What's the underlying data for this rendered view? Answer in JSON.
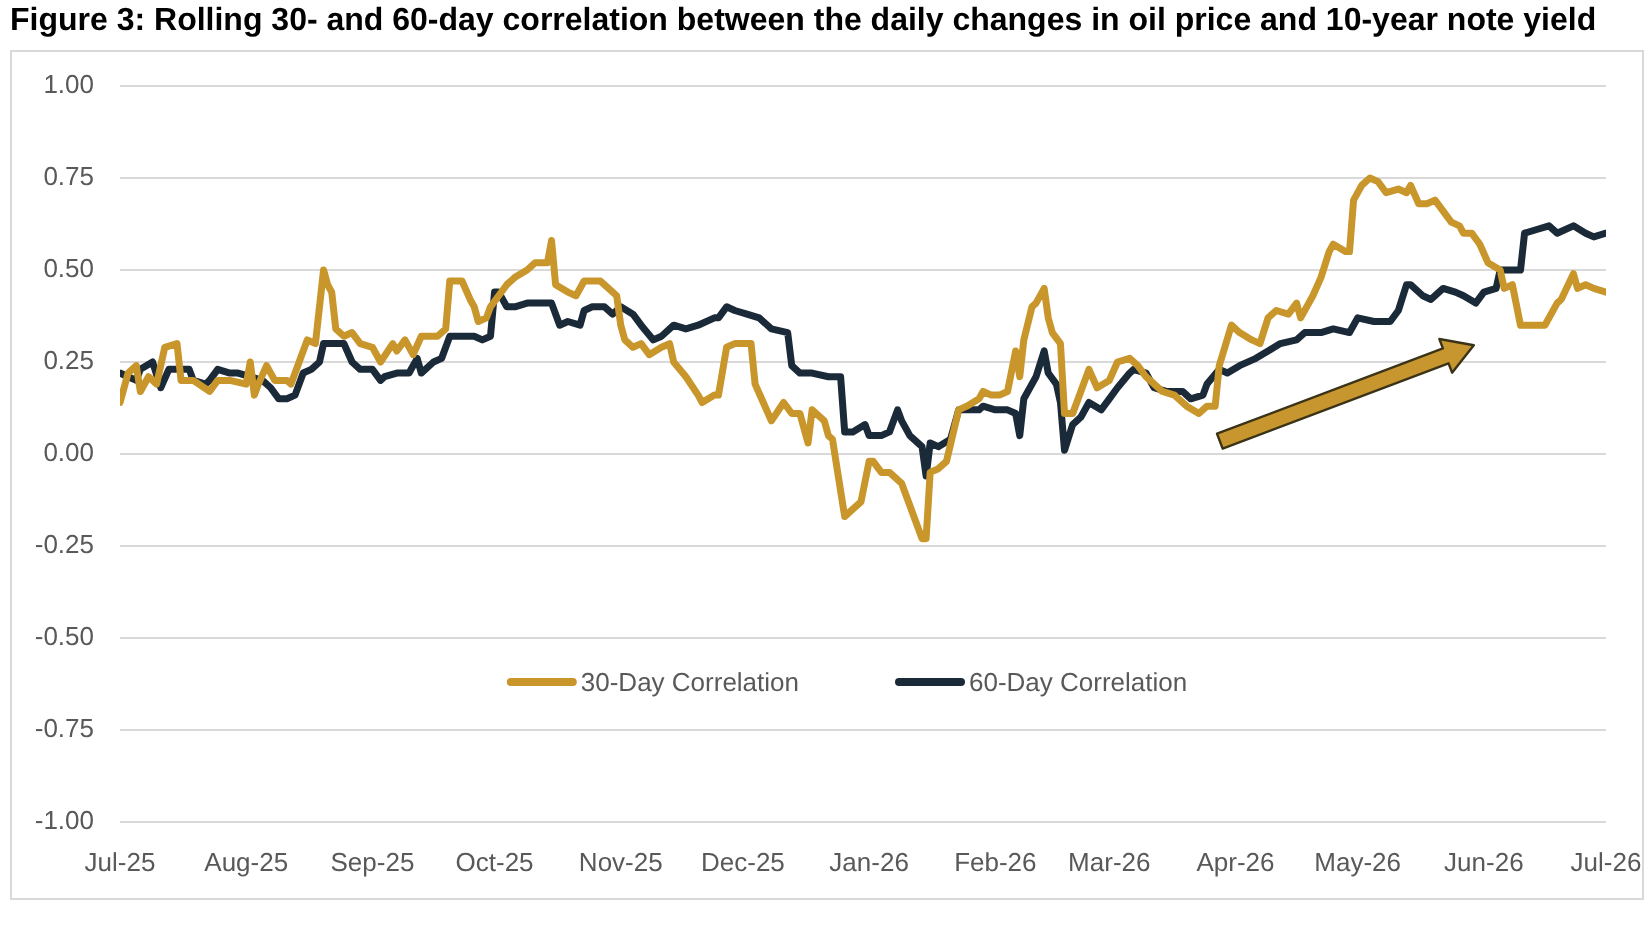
{
  "chart_data": {
    "type": "line",
    "title": "Figure 3: Rolling 30- and 60-day correlation between the daily changes in oil price and 10-year note yield",
    "xlim": [
      "2025-07-01",
      "2026-07-01"
    ],
    "xticks": [
      {
        "value": "2025-07-01",
        "label": "Jul-25"
      },
      {
        "value": "2025-08-01",
        "label": "Aug-25"
      },
      {
        "value": "2025-09-01",
        "label": "Sep-25"
      },
      {
        "value": "2025-10-01",
        "label": "Oct-25"
      },
      {
        "value": "2025-11-01",
        "label": "Nov-25"
      },
      {
        "value": "2025-12-01",
        "label": "Dec-25"
      },
      {
        "value": "2026-01-01",
        "label": "Jan-26"
      },
      {
        "value": "2026-02-01",
        "label": "Feb-26"
      },
      {
        "value": "2026-03-01",
        "label": "Mar-26"
      },
      {
        "value": "2026-04-01",
        "label": "Apr-26"
      },
      {
        "value": "2026-05-01",
        "label": "May-26"
      },
      {
        "value": "2026-06-01",
        "label": "Jun-26"
      },
      {
        "value": "2026-07-01",
        "label": "Jul-26"
      }
    ],
    "ylim": [
      -1,
      1
    ],
    "yticks": [
      {
        "value": -1,
        "label": "-1.00"
      },
      -0.75,
      {
        "value": -0.5,
        "label": "-0.50"
      },
      -0.25,
      {
        "value": 0,
        "label": "0.00"
      },
      0.25,
      {
        "value": 0.5,
        "label": "0.50"
      },
      0.75,
      {
        "value": 1,
        "label": "1.00"
      }
    ],
    "grid": "y",
    "legend": "bottom",
    "series": [
      {
        "name": "30-Day Correlation",
        "color": "#c9962b",
        "x": [
          "2025-07-01",
          "2025-07-03",
          "2025-07-05",
          "2025-07-06",
          "2025-07-08",
          "2025-07-10",
          "2025-07-12",
          "2025-07-15",
          "2025-07-16",
          "2025-07-19",
          "2025-07-23",
          "2025-07-25",
          "2025-07-28",
          "2025-08-01",
          "2025-08-02",
          "2025-08-03",
          "2025-08-04",
          "2025-08-06",
          "2025-08-08",
          "2025-08-11",
          "2025-08-12",
          "2025-08-14",
          "2025-08-16",
          "2025-08-18",
          "2025-08-20",
          "2025-08-21",
          "2025-08-22",
          "2025-08-23",
          "2025-08-25",
          "2025-08-27",
          "2025-08-29",
          "2025-09-01",
          "2025-09-03",
          "2025-09-06",
          "2025-09-07",
          "2025-09-09",
          "2025-09-11",
          "2025-09-13",
          "2025-09-17",
          "2025-09-19",
          "2025-09-20",
          "2025-09-23",
          "2025-09-25",
          "2025-09-26",
          "2025-09-27",
          "2025-09-29",
          "2025-09-30",
          "2025-10-04",
          "2025-10-06",
          "2025-10-09",
          "2025-10-11",
          "2025-10-14",
          "2025-10-15",
          "2025-10-16",
          "2025-10-19",
          "2025-10-21",
          "2025-10-23",
          "2025-10-27",
          "2025-10-29",
          "2025-10-31",
          "2025-11-01",
          "2025-11-02",
          "2025-11-04",
          "2025-11-06",
          "2025-11-08",
          "2025-11-11",
          "2025-11-13",
          "2025-11-14",
          "2025-11-17",
          "2025-11-20",
          "2025-11-21",
          "2025-11-24",
          "2025-11-25",
          "2025-11-27",
          "2025-11-29",
          "2025-12-03",
          "2025-12-04",
          "2025-12-06",
          "2025-12-08",
          "2025-12-11",
          "2025-12-13",
          "2025-12-15",
          "2025-12-17",
          "2025-12-18",
          "2025-12-21",
          "2025-12-22",
          "2025-12-23",
          "2025-12-26",
          "2025-12-28",
          "2025-12-30",
          "2026-01-01",
          "2026-01-02",
          "2026-01-04",
          "2026-01-06",
          "2026-01-09",
          "2026-01-11",
          "2026-01-14",
          "2026-01-15",
          "2026-01-16",
          "2026-01-18",
          "2026-01-20",
          "2026-01-23",
          "2026-01-25",
          "2026-01-28",
          "2026-01-29",
          "2026-01-31",
          "2026-02-02",
          "2026-02-04",
          "2026-02-06",
          "2026-02-07",
          "2026-02-08",
          "2026-02-10",
          "2026-02-11",
          "2026-02-13",
          "2026-02-14",
          "2026-02-15",
          "2026-02-17",
          "2026-02-18",
          "2026-02-20",
          "2026-02-22",
          "2026-02-24",
          "2026-02-26",
          "2026-03-01",
          "2026-03-03",
          "2026-03-06",
          "2026-03-08",
          "2026-03-10",
          "2026-03-14",
          "2026-03-17",
          "2026-03-20",
          "2026-03-23",
          "2026-03-25",
          "2026-03-27",
          "2026-03-28",
          "2026-03-31",
          "2026-04-02",
          "2026-04-05",
          "2026-04-07",
          "2026-04-09",
          "2026-04-11",
          "2026-04-14",
          "2026-04-16",
          "2026-04-17",
          "2026-04-20",
          "2026-04-22",
          "2026-04-24",
          "2026-04-25",
          "2026-04-28",
          "2026-04-29",
          "2026-04-30",
          "2026-05-02",
          "2026-05-04",
          "2026-05-06",
          "2026-05-08",
          "2026-05-11",
          "2026-05-13",
          "2026-05-14",
          "2026-05-16",
          "2026-05-18",
          "2026-05-20",
          "2026-05-22",
          "2026-05-24",
          "2026-05-26",
          "2026-05-27",
          "2026-05-29",
          "2026-05-31",
          "2026-06-02",
          "2026-06-05",
          "2026-06-06",
          "2026-06-08",
          "2026-06-10",
          "2026-06-14",
          "2026-06-16",
          "2026-06-19",
          "2026-06-20",
          "2026-06-23",
          "2026-06-24",
          "2026-06-26",
          "2026-06-28",
          "2026-07-01"
        ],
        "values": [
          0.14,
          0.22,
          0.24,
          0.17,
          0.21,
          0.19,
          0.29,
          0.3,
          0.2,
          0.2,
          0.17,
          0.2,
          0.2,
          0.19,
          0.25,
          0.16,
          0.19,
          0.24,
          0.2,
          0.2,
          0.19,
          0.25,
          0.31,
          0.3,
          0.5,
          0.46,
          0.44,
          0.34,
          0.32,
          0.33,
          0.3,
          0.29,
          0.25,
          0.3,
          0.28,
          0.31,
          0.27,
          0.32,
          0.32,
          0.34,
          0.47,
          0.47,
          0.42,
          0.4,
          0.36,
          0.37,
          0.4,
          0.46,
          0.48,
          0.5,
          0.52,
          0.52,
          0.58,
          0.46,
          0.44,
          0.43,
          0.47,
          0.47,
          0.45,
          0.43,
          0.35,
          0.31,
          0.29,
          0.3,
          0.27,
          0.29,
          0.3,
          0.25,
          0.21,
          0.16,
          0.14,
          0.16,
          0.16,
          0.29,
          0.3,
          0.3,
          0.19,
          0.14,
          0.09,
          0.14,
          0.11,
          0.11,
          0.03,
          0.12,
          0.09,
          0.05,
          0.04,
          -0.17,
          -0.15,
          -0.13,
          -0.02,
          -0.02,
          -0.05,
          -0.05,
          -0.08,
          -0.14,
          -0.23,
          -0.23,
          -0.05,
          -0.04,
          -0.02,
          0.12,
          0.13,
          0.15,
          0.17,
          0.16,
          0.16,
          0.17,
          0.28,
          0.21,
          0.31,
          0.4,
          0.41,
          0.45,
          0.37,
          0.33,
          0.3,
          0.11,
          0.11,
          0.17,
          0.23,
          0.18,
          0.2,
          0.25,
          0.26,
          0.24,
          0.21,
          0.17,
          0.16,
          0.13,
          0.11,
          0.13,
          0.13,
          0.24,
          0.35,
          0.33,
          0.31,
          0.3,
          0.37,
          0.39,
          0.38,
          0.41,
          0.37,
          0.43,
          0.48,
          0.55,
          0.57,
          0.55,
          0.55,
          0.69,
          0.73,
          0.75,
          0.74,
          0.71,
          0.72,
          0.71,
          0.73,
          0.68,
          0.68,
          0.69,
          0.66,
          0.63,
          0.62,
          0.6,
          0.6,
          0.57,
          0.52,
          0.5,
          0.45,
          0.46,
          0.35,
          0.35,
          0.35,
          0.41,
          0.42,
          0.49,
          0.45,
          0.46,
          0.45,
          0.44
        ]
      },
      {
        "name": "60-Day Correlation",
        "color": "#1b2a38",
        "x": [
          "2025-07-01",
          "2025-07-03",
          "2025-07-05",
          "2025-07-06",
          "2025-07-09",
          "2025-07-11",
          "2025-07-13",
          "2025-07-15",
          "2025-07-18",
          "2025-07-19",
          "2025-07-22",
          "2025-07-23",
          "2025-07-25",
          "2025-07-28",
          "2025-07-30",
          "2025-08-02",
          "2025-08-05",
          "2025-08-07",
          "2025-08-09",
          "2025-08-11",
          "2025-08-13",
          "2025-08-15",
          "2025-08-17",
          "2025-08-19",
          "2025-08-20",
          "2025-08-23",
          "2025-08-25",
          "2025-08-27",
          "2025-08-29",
          "2025-09-01",
          "2025-09-03",
          "2025-09-04",
          "2025-09-07",
          "2025-09-10",
          "2025-09-12",
          "2025-09-13",
          "2025-09-16",
          "2025-09-18",
          "2025-09-20",
          "2025-09-22",
          "2025-09-26",
          "2025-09-28",
          "2025-09-30",
          "2025-10-01",
          "2025-10-02",
          "2025-10-04",
          "2025-10-06",
          "2025-10-09",
          "2025-10-12",
          "2025-10-15",
          "2025-10-17",
          "2025-10-19",
          "2025-10-22",
          "2025-10-23",
          "2025-10-25",
          "2025-10-28",
          "2025-10-30",
          "2025-11-01",
          "2025-11-04",
          "2025-11-06",
          "2025-11-09",
          "2025-11-11",
          "2025-11-14",
          "2025-11-17",
          "2025-11-20",
          "2025-11-24",
          "2025-11-25",
          "2025-11-27",
          "2025-11-29",
          "2025-12-02",
          "2025-12-05",
          "2025-12-08",
          "2025-12-12",
          "2025-12-13",
          "2025-12-15",
          "2025-12-18",
          "2025-12-22",
          "2025-12-25",
          "2025-12-26",
          "2025-12-28",
          "2025-12-31",
          "2026-01-01",
          "2026-01-04",
          "2026-01-06",
          "2026-01-08",
          "2026-01-09",
          "2026-01-11",
          "2026-01-14",
          "2026-01-15",
          "2026-01-16",
          "2026-01-18",
          "2026-01-21",
          "2026-01-23",
          "2026-01-25",
          "2026-01-28",
          "2026-01-29",
          "2026-02-01",
          "2026-02-04",
          "2026-02-06",
          "2026-02-07",
          "2026-02-08",
          "2026-02-11",
          "2026-02-13",
          "2026-02-14",
          "2026-02-16",
          "2026-02-17",
          "2026-02-18",
          "2026-02-20",
          "2026-02-22",
          "2026-02-24",
          "2026-02-27",
          "2026-03-01",
          "2026-03-03",
          "2026-03-06",
          "2026-03-07",
          "2026-03-10",
          "2026-03-12",
          "2026-03-15",
          "2026-03-19",
          "2026-03-21",
          "2026-03-24",
          "2026-03-25",
          "2026-03-28",
          "2026-03-30",
          "2026-04-02",
          "2026-04-06",
          "2026-04-09",
          "2026-04-12",
          "2026-04-16",
          "2026-04-18",
          "2026-04-22",
          "2026-04-25",
          "2026-04-29",
          "2026-05-01",
          "2026-05-05",
          "2026-05-09",
          "2026-05-11",
          "2026-05-13",
          "2026-05-14",
          "2026-05-17",
          "2026-05-19",
          "2026-05-22",
          "2026-05-25",
          "2026-05-27",
          "2026-05-30",
          "2026-06-01",
          "2026-06-04",
          "2026-06-05",
          "2026-06-07",
          "2026-06-10",
          "2026-06-11",
          "2026-06-14",
          "2026-06-17",
          "2026-06-19",
          "2026-06-23",
          "2026-06-26",
          "2026-06-28",
          "2026-07-01"
        ],
        "values": [
          0.22,
          0.21,
          0.2,
          0.23,
          0.25,
          0.18,
          0.23,
          0.23,
          0.23,
          0.2,
          0.19,
          0.2,
          0.23,
          0.22,
          0.22,
          0.21,
          0.2,
          0.18,
          0.15,
          0.15,
          0.16,
          0.22,
          0.23,
          0.25,
          0.3,
          0.3,
          0.3,
          0.25,
          0.23,
          0.23,
          0.2,
          0.21,
          0.22,
          0.22,
          0.26,
          0.22,
          0.25,
          0.26,
          0.32,
          0.32,
          0.32,
          0.31,
          0.32,
          0.44,
          0.44,
          0.4,
          0.4,
          0.41,
          0.41,
          0.41,
          0.35,
          0.36,
          0.35,
          0.39,
          0.4,
          0.4,
          0.38,
          0.4,
          0.38,
          0.35,
          0.31,
          0.32,
          0.35,
          0.34,
          0.35,
          0.37,
          0.37,
          0.4,
          0.39,
          0.38,
          0.37,
          0.34,
          0.33,
          0.24,
          0.22,
          0.22,
          0.21,
          0.21,
          0.06,
          0.06,
          0.08,
          0.05,
          0.05,
          0.06,
          0.12,
          0.09,
          0.05,
          0.02,
          -0.06,
          0.03,
          0.02,
          0.04,
          0.12,
          0.12,
          0.12,
          0.13,
          0.12,
          0.12,
          0.11,
          0.05,
          0.15,
          0.21,
          0.28,
          0.22,
          0.19,
          0.14,
          0.01,
          0.08,
          0.1,
          0.14,
          0.12,
          0.15,
          0.18,
          0.22,
          0.23,
          0.22,
          0.18,
          0.17,
          0.17,
          0.15,
          0.16,
          0.19,
          0.23,
          0.22,
          0.24,
          0.26,
          0.28,
          0.3,
          0.31,
          0.33,
          0.33,
          0.34,
          0.33,
          0.37,
          0.36,
          0.36,
          0.39,
          0.46,
          0.46,
          0.43,
          0.42,
          0.45,
          0.44,
          0.43,
          0.41,
          0.44,
          0.45,
          0.5,
          0.5,
          0.5,
          0.6,
          0.61,
          0.62,
          0.6,
          0.62,
          0.6,
          0.59,
          0.6
        ]
      }
    ]
  }
}
